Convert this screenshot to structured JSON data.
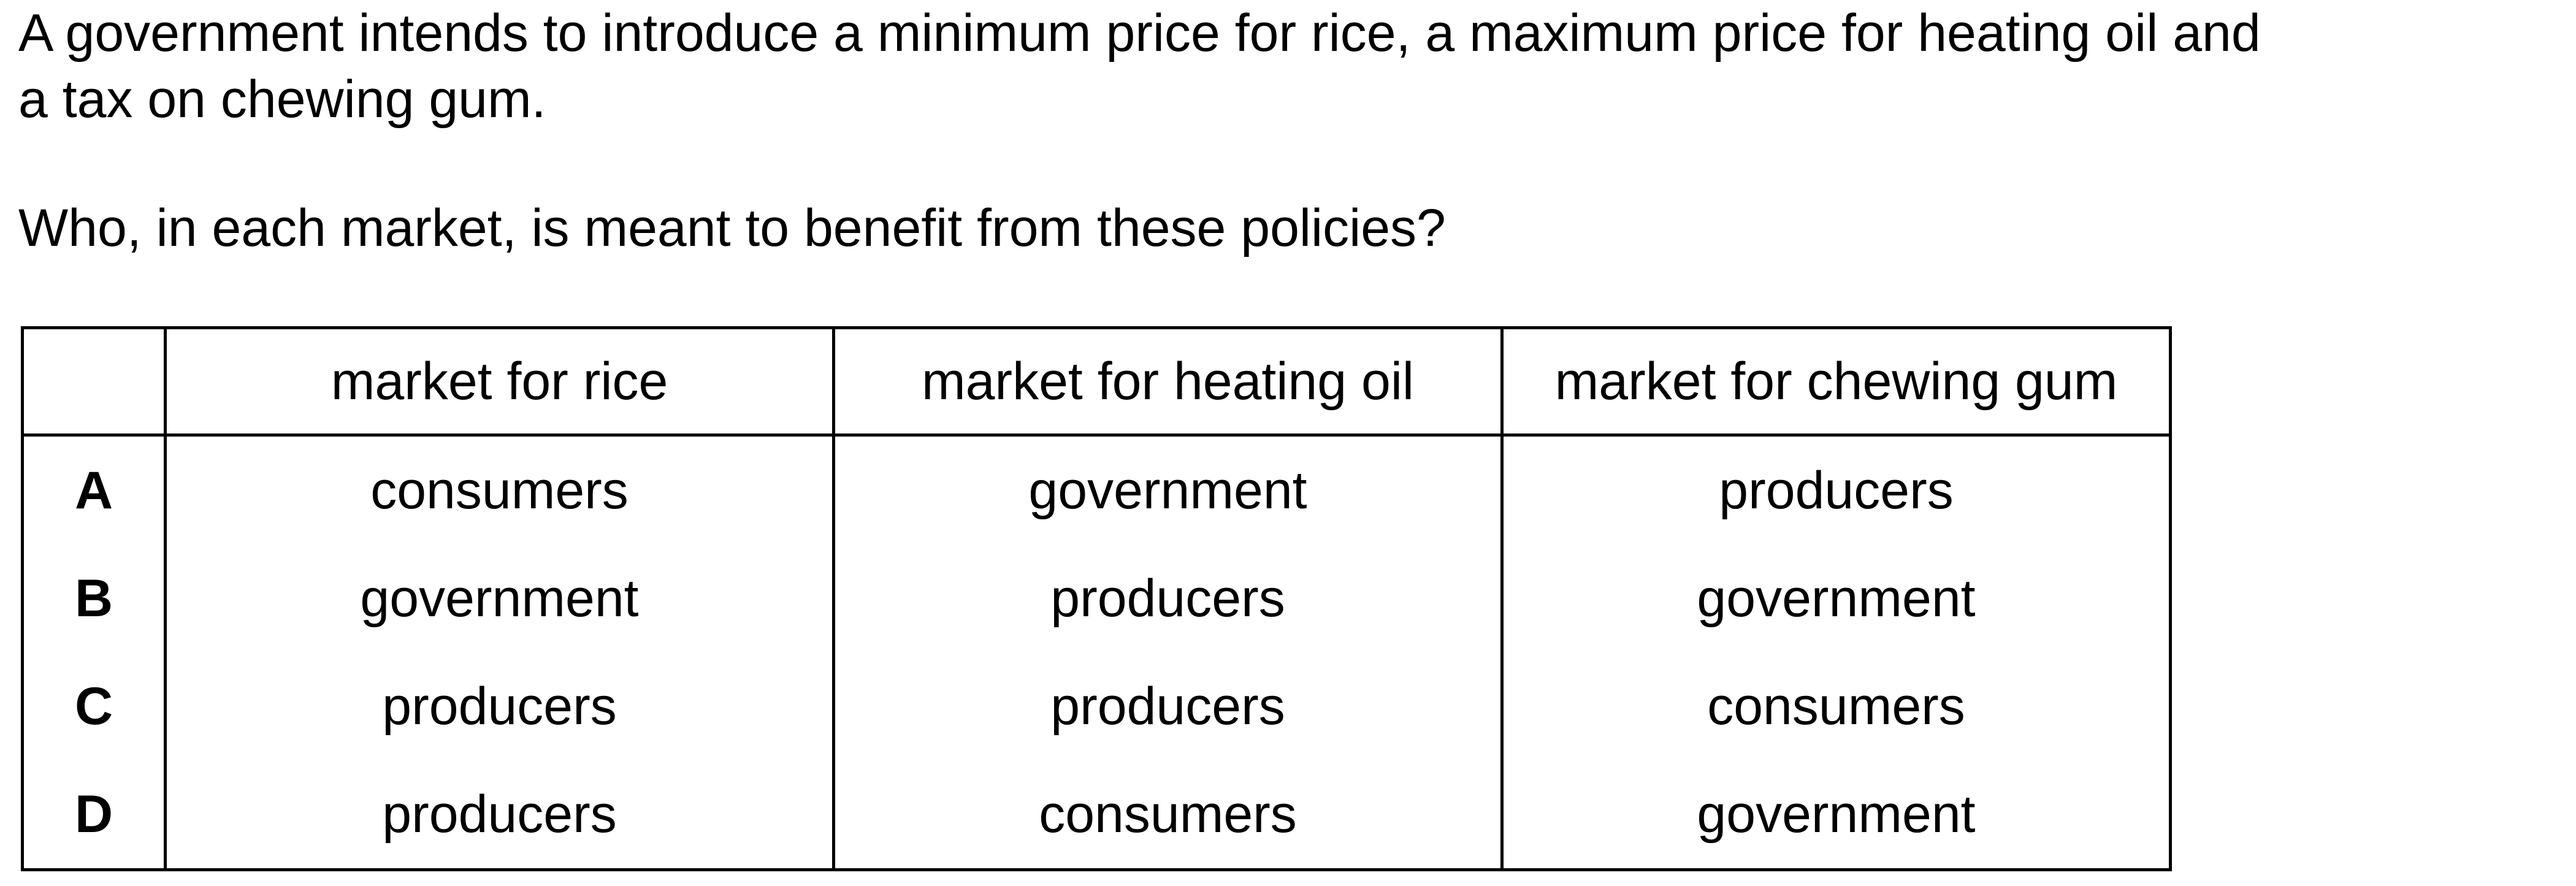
{
  "question": {
    "intro_line_1": "A government intends to introduce a minimum price for rice, a maximum price for heating oil and",
    "intro_line_2": "a tax on chewing gum.",
    "prompt": "Who, in each market, is meant to benefit from these policies?"
  },
  "table": {
    "corner": "",
    "headers": [
      "market for rice",
      "market for heating oil",
      "market for chewing gum"
    ],
    "rows": [
      {
        "key": "A",
        "cells": [
          "consumers",
          "government",
          "producers"
        ]
      },
      {
        "key": "B",
        "cells": [
          "government",
          "producers",
          "government"
        ]
      },
      {
        "key": "C",
        "cells": [
          "producers",
          "producers",
          "consumers"
        ]
      },
      {
        "key": "D",
        "cells": [
          "producers",
          "consumers",
          "government"
        ]
      }
    ]
  }
}
